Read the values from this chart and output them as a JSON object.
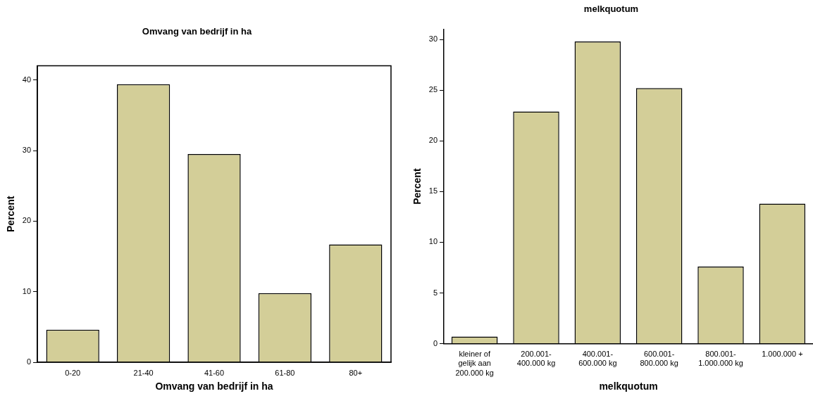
{
  "chart_data": [
    {
      "type": "bar",
      "title": "Omvang van bedrijf in ha",
      "xlabel": "Omvang van bedrijf in ha",
      "ylabel": "Percent",
      "categories": [
        "0-20",
        "21-40",
        "41-60",
        "61-80",
        "80+"
      ],
      "values": [
        4.6,
        39.4,
        29.5,
        9.8,
        16.7
      ],
      "color": "#d3ce98",
      "ylim": [
        0,
        42
      ],
      "yticks": [
        0,
        10,
        20,
        30,
        40
      ],
      "grid": false,
      "legend": false
    },
    {
      "type": "bar",
      "title": "melkquotum",
      "xlabel": "melkquotum",
      "ylabel": "Percent",
      "categories": [
        "kleiner of gelijk aan 200.000 kg",
        "200.001-400.000 kg",
        "400.001-600.000 kg",
        "600.001-800.000 kg",
        "800.001-1.000.000 kg",
        "1.000.000 +"
      ],
      "values": [
        0.7,
        22.9,
        29.8,
        25.2,
        7.6,
        13.8
      ],
      "color": "#d3ce98",
      "ylim": [
        0,
        31
      ],
      "yticks": [
        0,
        5,
        10,
        15,
        20,
        25,
        30
      ],
      "grid": false,
      "legend": false
    }
  ]
}
